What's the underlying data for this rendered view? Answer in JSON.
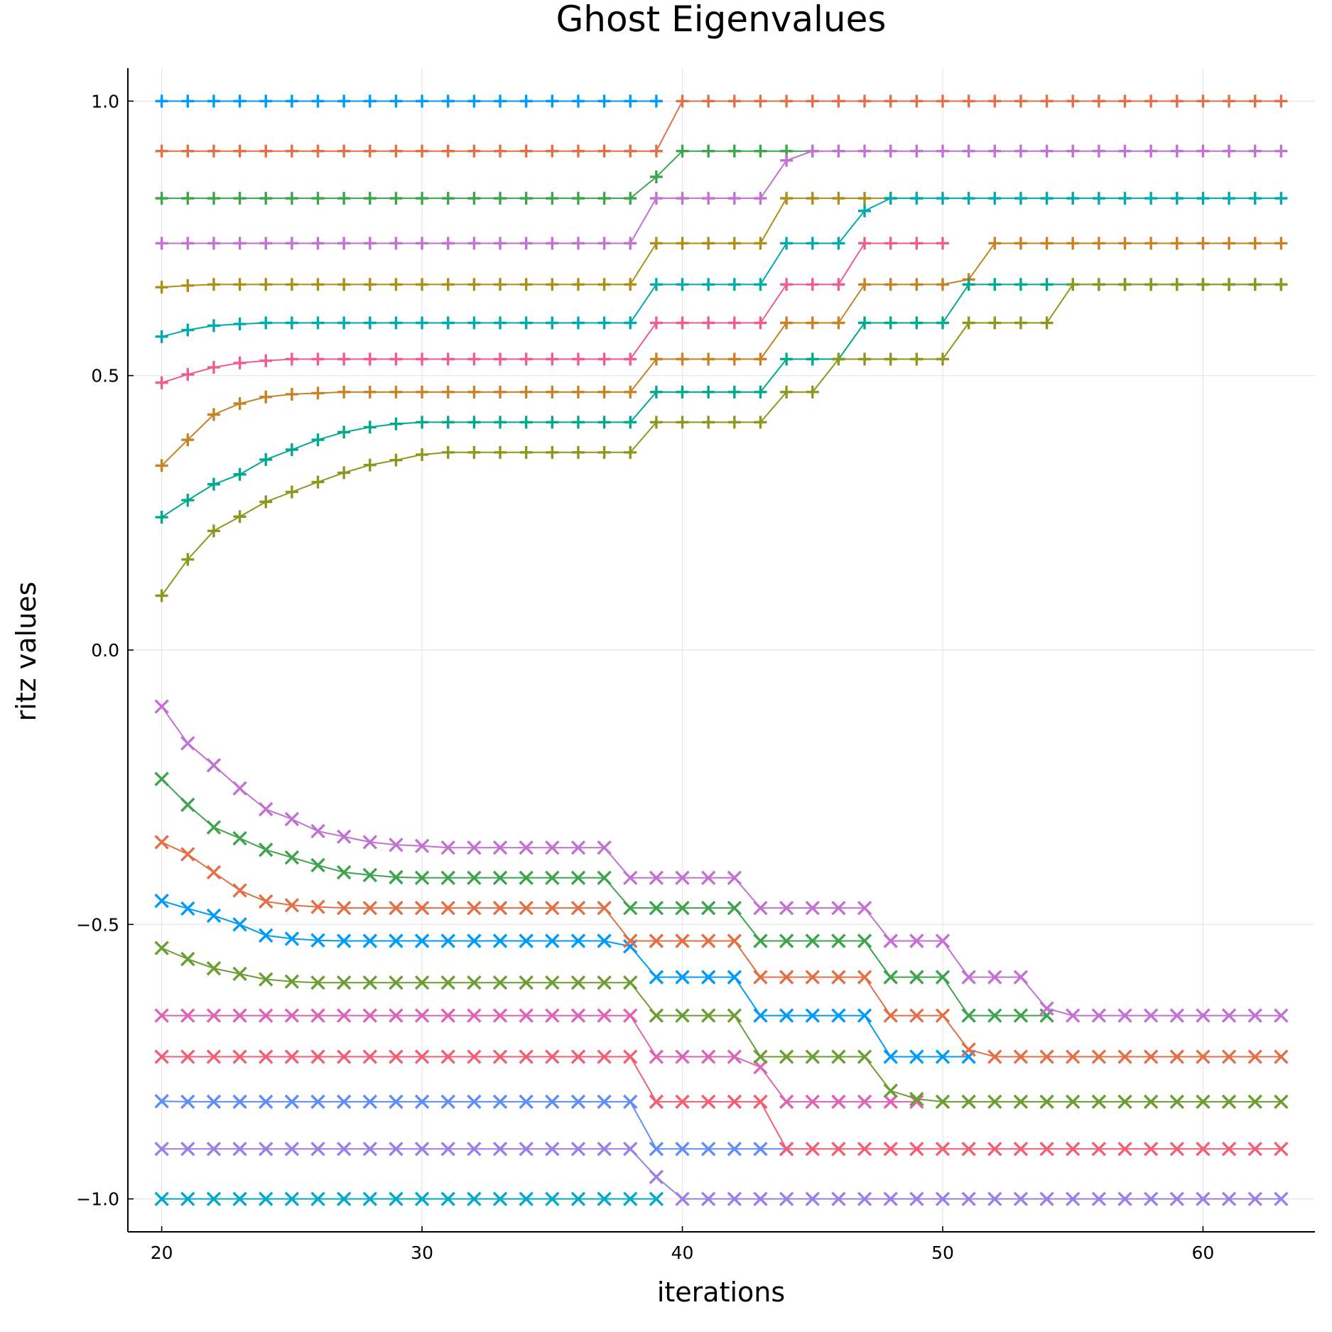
{
  "chart_data": {
    "type": "line",
    "title": "Ghost Eigenvalues",
    "xlabel": "iterations",
    "ylabel": "ritz values",
    "x_range": [
      20,
      63
    ],
    "xlim": [
      18.7,
      64.3
    ],
    "ylim": [
      -1.06,
      1.06
    ],
    "x_ticks": [
      20,
      30,
      40,
      50,
      60
    ],
    "x_tick_labels": [
      "20",
      "30",
      "40",
      "50",
      "60"
    ],
    "y_ticks": [
      -1.0,
      -0.5,
      0.0,
      0.5,
      1.0
    ],
    "y_tick_labels": [
      "−1.0",
      "−0.5",
      "0.0",
      "0.5",
      "1.0"
    ],
    "grid": true,
    "legend": "none",
    "series": [
      {
        "color": "#009af9",
        "marker": "plus",
        "segments": [
          [
            20,
            39,
            1.0
          ]
        ]
      },
      {
        "color": "#e26f46",
        "marker": "plus",
        "segments": [
          [
            20,
            39,
            0.909
          ],
          [
            40,
            63,
            1.0
          ]
        ]
      },
      {
        "color": "#3da44d",
        "marker": "plus",
        "segments": [
          [
            20,
            38,
            0.823
          ],
          [
            39,
            0.862
          ],
          [
            40,
            45,
            0.909
          ]
        ]
      },
      {
        "color": "#c271d2",
        "marker": "plus",
        "segments": [
          [
            20,
            38,
            0.741
          ],
          [
            39,
            43,
            0.823
          ],
          [
            44,
            0.892
          ],
          [
            45,
            63,
            0.909
          ]
        ]
      },
      {
        "color": "#ac8e18",
        "marker": "plus",
        "segments": [
          [
            20,
            0.661
          ],
          [
            21,
            0.664
          ],
          [
            22,
            37,
            0.666
          ],
          [
            38,
            0.666
          ],
          [
            39,
            43,
            0.741
          ],
          [
            44,
            48,
            0.823
          ]
        ]
      },
      {
        "color": "#00a9ad",
        "marker": "plus",
        "segments": [
          [
            20,
            0.571
          ],
          [
            21,
            0.583
          ],
          [
            22,
            0.591
          ],
          [
            23,
            0.594
          ],
          [
            24,
            38,
            0.596
          ],
          [
            39,
            43,
            0.666
          ],
          [
            44,
            46,
            0.741
          ],
          [
            47,
            0.8
          ],
          [
            48,
            63,
            0.823
          ]
        ]
      },
      {
        "color": "#ed5d92",
        "marker": "plus",
        "segments": [
          [
            20,
            0.487
          ],
          [
            21,
            0.502
          ],
          [
            22,
            0.515
          ],
          [
            23,
            0.523
          ],
          [
            24,
            0.527
          ],
          [
            25,
            38,
            0.53
          ],
          [
            39,
            43,
            0.596
          ],
          [
            44,
            46,
            0.666
          ],
          [
            47,
            50,
            0.741
          ]
        ]
      },
      {
        "color": "#c68225",
        "marker": "plus",
        "segments": [
          [
            20,
            0.336
          ],
          [
            21,
            0.383
          ],
          [
            22,
            0.429
          ],
          [
            23,
            0.449
          ],
          [
            24,
            0.461
          ],
          [
            25,
            0.466
          ],
          [
            26,
            0.468
          ],
          [
            27,
            38,
            0.47
          ],
          [
            39,
            43,
            0.53
          ],
          [
            44,
            46,
            0.596
          ],
          [
            47,
            50,
            0.666
          ],
          [
            51,
            0.675
          ],
          [
            52,
            63,
            0.741
          ]
        ]
      },
      {
        "color": "#00a98d",
        "marker": "plus",
        "segments": [
          [
            20,
            0.242
          ],
          [
            21,
            0.273
          ],
          [
            22,
            0.302
          ],
          [
            23,
            0.32
          ],
          [
            24,
            0.347
          ],
          [
            25,
            0.365
          ],
          [
            26,
            0.383
          ],
          [
            27,
            0.397
          ],
          [
            28,
            0.406
          ],
          [
            29,
            0.412
          ],
          [
            30,
            38,
            0.415
          ],
          [
            39,
            43,
            0.47
          ],
          [
            44,
            46,
            0.53
          ],
          [
            47,
            50,
            0.596
          ],
          [
            51,
            63,
            0.666
          ]
        ]
      },
      {
        "color": "#8e971d",
        "marker": "plus",
        "segments": [
          [
            20,
            0.099
          ],
          [
            21,
            0.165
          ],
          [
            22,
            0.217
          ],
          [
            23,
            0.243
          ],
          [
            24,
            0.27
          ],
          [
            25,
            0.288
          ],
          [
            26,
            0.306
          ],
          [
            27,
            0.323
          ],
          [
            28,
            0.337
          ],
          [
            29,
            0.346
          ],
          [
            30,
            0.356
          ],
          [
            31,
            38,
            0.36
          ],
          [
            39,
            43,
            0.415
          ],
          [
            44,
            45,
            0.47
          ],
          [
            46,
            50,
            0.53
          ],
          [
            51,
            54,
            0.596
          ],
          [
            55,
            63,
            0.666
          ]
        ]
      },
      {
        "color": "#00a9c9",
        "marker": "cross",
        "segments": [
          [
            20,
            39,
            -1.0
          ]
        ]
      },
      {
        "color": "#9b7fe8",
        "marker": "cross",
        "segments": [
          [
            20,
            38,
            -0.909
          ],
          [
            39,
            -0.96
          ],
          [
            40,
            63,
            -1.0
          ]
        ]
      },
      {
        "color": "#618df6",
        "marker": "cross",
        "segments": [
          [
            20,
            -0.822
          ],
          [
            21,
            38,
            -0.823
          ],
          [
            39,
            44,
            -0.909
          ]
        ]
      },
      {
        "color": "#f05f73",
        "marker": "cross",
        "segments": [
          [
            20,
            38,
            -0.741
          ],
          [
            39,
            43,
            -0.823
          ],
          [
            44,
            63,
            -0.909
          ]
        ]
      },
      {
        "color": "#dd64b5",
        "marker": "cross",
        "segments": [
          [
            20,
            38,
            -0.666
          ],
          [
            39,
            42,
            -0.741
          ],
          [
            43,
            -0.76
          ],
          [
            44,
            49,
            -0.823
          ]
        ]
      },
      {
        "color": "#6b9e32",
        "marker": "cross",
        "segments": [
          [
            20,
            -0.543
          ],
          [
            21,
            -0.563
          ],
          [
            22,
            -0.58
          ],
          [
            23,
            -0.59
          ],
          [
            24,
            -0.6
          ],
          [
            25,
            -0.604
          ],
          [
            26,
            38,
            -0.606
          ],
          [
            39,
            42,
            -0.666
          ],
          [
            43,
            47,
            -0.741
          ],
          [
            48,
            -0.803
          ],
          [
            49,
            -0.818
          ],
          [
            50,
            63,
            -0.823
          ]
        ]
      },
      {
        "color": "#009af9",
        "marker": "cross",
        "segments": [
          [
            20,
            -0.457
          ],
          [
            21,
            -0.471
          ],
          [
            22,
            -0.484
          ],
          [
            23,
            -0.5
          ],
          [
            24,
            -0.52
          ],
          [
            25,
            -0.526
          ],
          [
            26,
            -0.529
          ],
          [
            27,
            37,
            -0.53
          ],
          [
            38,
            -0.54
          ],
          [
            39,
            42,
            -0.596
          ],
          [
            43,
            47,
            -0.666
          ],
          [
            48,
            51,
            -0.741
          ]
        ]
      },
      {
        "color": "#e26f46",
        "marker": "cross",
        "segments": [
          [
            20,
            -0.35
          ],
          [
            21,
            -0.372
          ],
          [
            22,
            -0.405
          ],
          [
            23,
            -0.438
          ],
          [
            24,
            -0.458
          ],
          [
            25,
            -0.465
          ],
          [
            26,
            -0.468
          ],
          [
            27,
            37,
            -0.47
          ],
          [
            38,
            42,
            -0.53
          ],
          [
            43,
            47,
            -0.596
          ],
          [
            48,
            50,
            -0.666
          ],
          [
            51,
            -0.728
          ],
          [
            52,
            63,
            -0.741
          ]
        ]
      },
      {
        "color": "#3da44d",
        "marker": "cross",
        "segments": [
          [
            20,
            -0.235
          ],
          [
            21,
            -0.282
          ],
          [
            22,
            -0.323
          ],
          [
            23,
            -0.343
          ],
          [
            24,
            -0.364
          ],
          [
            25,
            -0.378
          ],
          [
            26,
            -0.392
          ],
          [
            27,
            -0.405
          ],
          [
            28,
            -0.41
          ],
          [
            29,
            -0.414
          ],
          [
            30,
            37,
            -0.415
          ],
          [
            38,
            42,
            -0.47
          ],
          [
            43,
            47,
            -0.53
          ],
          [
            48,
            50,
            -0.596
          ],
          [
            51,
            54,
            -0.666
          ]
        ]
      },
      {
        "color": "#c271d2",
        "marker": "cross",
        "segments": [
          [
            20,
            -0.103
          ],
          [
            21,
            -0.17
          ],
          [
            22,
            -0.21
          ],
          [
            23,
            -0.252
          ],
          [
            24,
            -0.29
          ],
          [
            25,
            -0.308
          ],
          [
            26,
            -0.33
          ],
          [
            27,
            -0.34
          ],
          [
            28,
            -0.35
          ],
          [
            29,
            -0.355
          ],
          [
            30,
            -0.357
          ],
          [
            31,
            37,
            -0.36
          ],
          [
            38,
            42,
            -0.415
          ],
          [
            43,
            47,
            -0.47
          ],
          [
            48,
            50,
            -0.53
          ],
          [
            51,
            53,
            -0.596
          ],
          [
            54,
            -0.653
          ],
          [
            55,
            63,
            -0.666
          ]
        ]
      }
    ]
  }
}
